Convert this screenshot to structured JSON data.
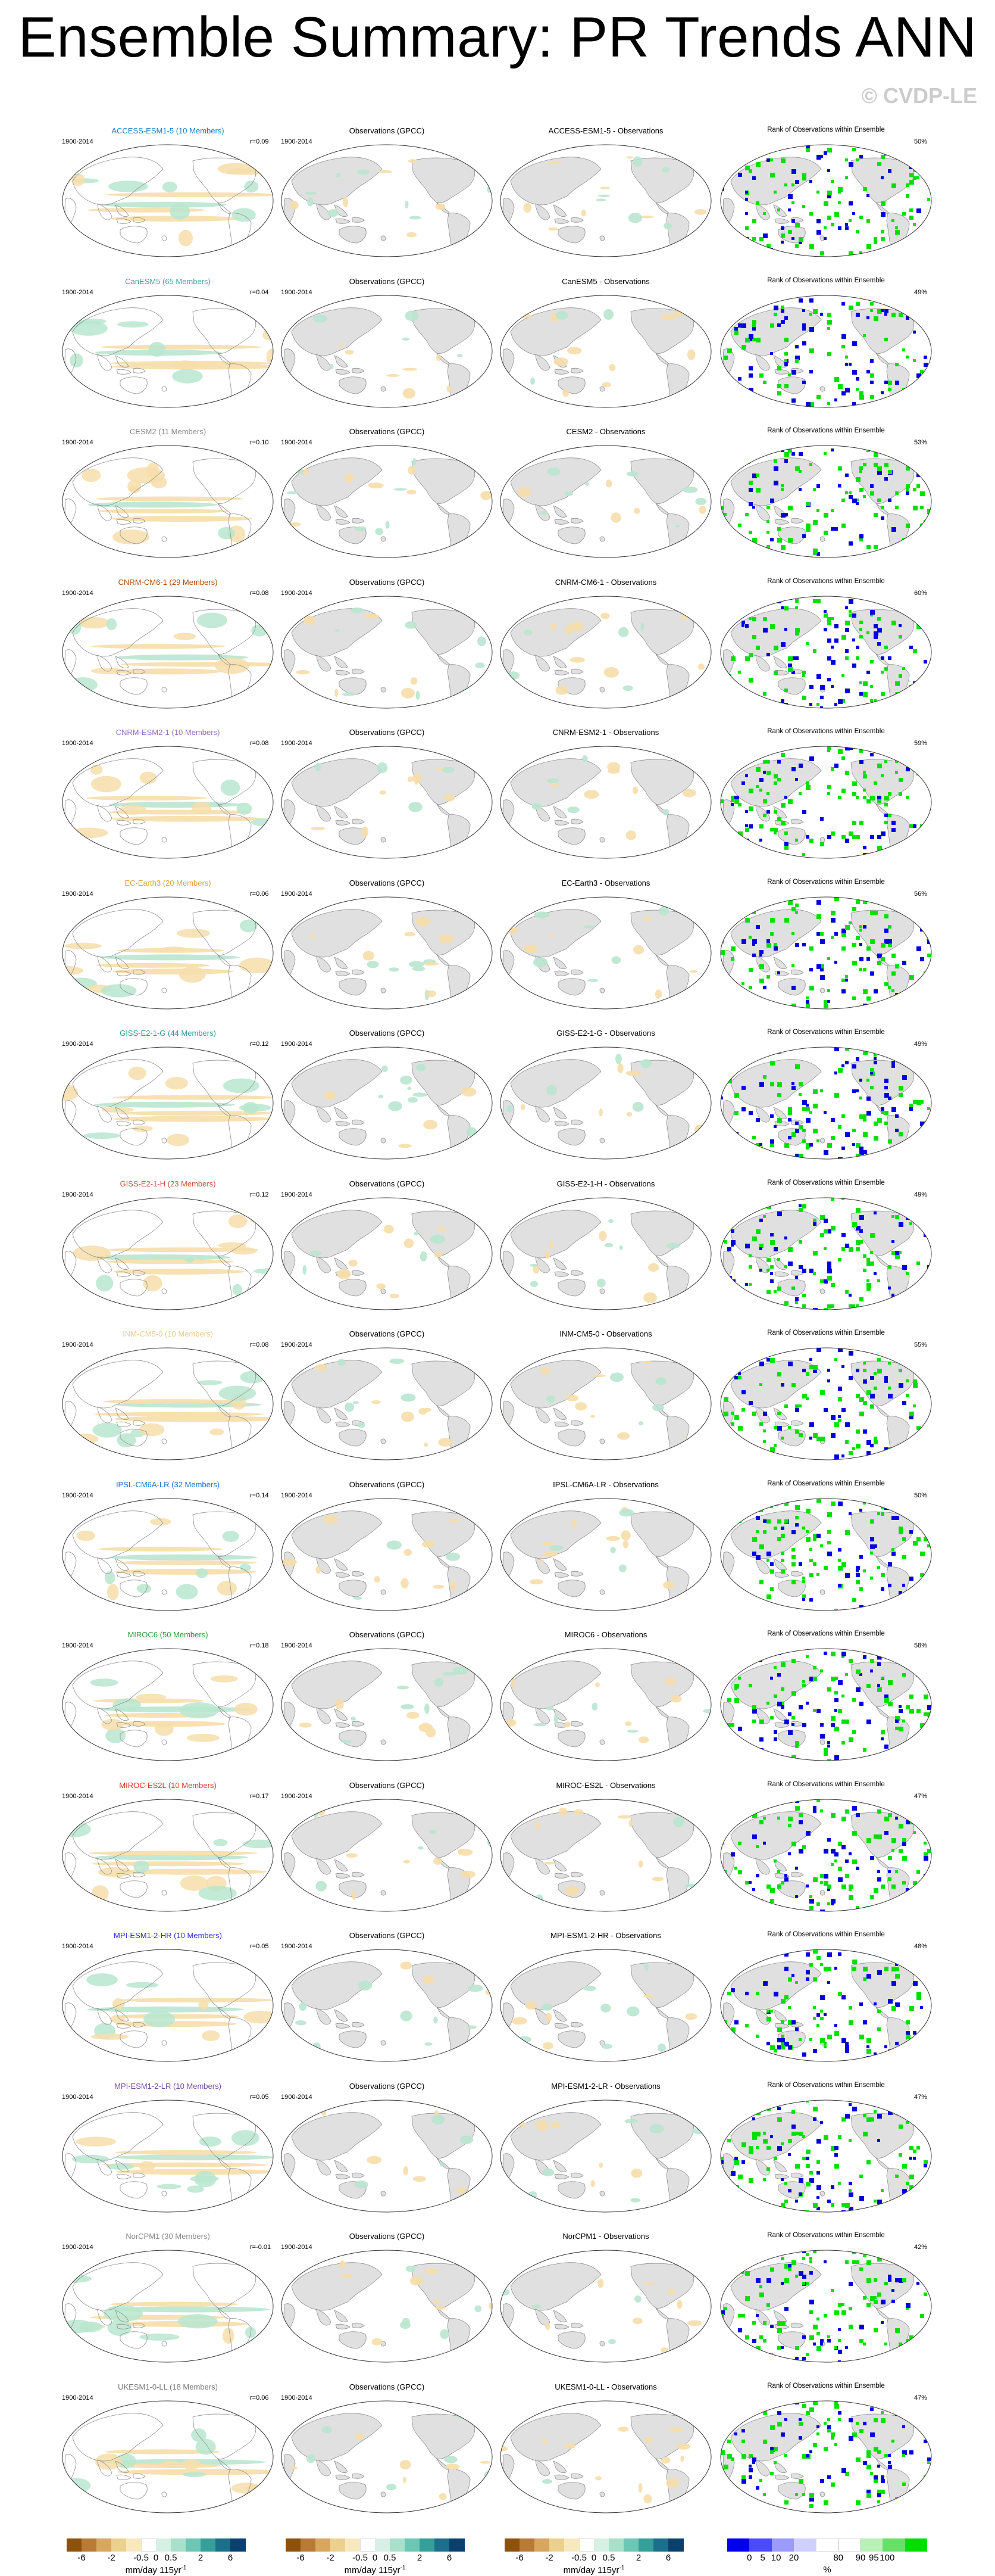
{
  "title": "Ensemble Summary: PR Trends ANN",
  "credit": "© CVDP-LE",
  "period": "1900-2014",
  "obs_title": "Observations (GPCC)",
  "rank_title": "Rank of Observations within Ensemble",
  "rows": [
    {
      "model": "ACCESS-ESM1-5 (10 Members)",
      "color": "#1a7fbf",
      "r": "r=0.09",
      "diff": "ACCESS-ESM1-5 - Observations",
      "rank_pct": "50%"
    },
    {
      "model": "CanESM5 (65 Members)",
      "color": "#46a0a0",
      "r": "r=0.04",
      "diff": "CanESM5 - Observations",
      "rank_pct": "49%"
    },
    {
      "model": "CESM2 (11 Members)",
      "color": "#8a8a8a",
      "r": "r=0.10",
      "diff": "CESM2 - Observations",
      "rank_pct": "53%"
    },
    {
      "model": "CNRM-CM6-1 (29 Members)",
      "color": "#b34a00",
      "r": "r=0.08",
      "diff": "CNRM-CM6-1 - Observations",
      "rank_pct": "60%"
    },
    {
      "model": "CNRM-ESM2-1 (10 Members)",
      "color": "#9a6fc4",
      "r": "r=0.08",
      "diff": "CNRM-ESM2-1 - Observations",
      "rank_pct": "59%"
    },
    {
      "model": "EC-Earth3 (20 Members)",
      "color": "#d9a640",
      "r": "r=0.06",
      "diff": "EC-Earth3 - Observations",
      "rank_pct": "56%"
    },
    {
      "model": "GISS-E2-1-G (44 Members)",
      "color": "#2f9a9a",
      "r": "r=0.12",
      "diff": "GISS-E2-1-G - Observations",
      "rank_pct": "49%"
    },
    {
      "model": "GISS-E2-1-H (23 Members)",
      "color": "#c0563c",
      "r": "r=0.12",
      "diff": "GISS-E2-1-H - Observations",
      "rank_pct": "49%"
    },
    {
      "model": "INM-CM5-0 (10 Members)",
      "color": "#e6d08a",
      "r": "r=0.08",
      "diff": "INM-CM5-0 - Observations",
      "rank_pct": "55%"
    },
    {
      "model": "IPSL-CM6A-LR (32 Members)",
      "color": "#1f6fd0",
      "r": "r=0.14",
      "diff": "IPSL-CM6A-LR - Observations",
      "rank_pct": "50%"
    },
    {
      "model": "MIROC6 (50 Members)",
      "color": "#2e9a3a",
      "r": "r=0.18",
      "diff": "MIROC6 - Observations",
      "rank_pct": "58%"
    },
    {
      "model": "MIROC-ES2L (10 Members)",
      "color": "#d43a2a",
      "r": "r=0.17",
      "diff": "MIROC-ES2L - Observations",
      "rank_pct": "47%"
    },
    {
      "model": "MPI-ESM1-2-HR (10 Members)",
      "color": "#2f2fd0",
      "r": "r=0.05",
      "diff": "MPI-ESM1-2-HR - Observations",
      "rank_pct": "48%"
    },
    {
      "model": "MPI-ESM1-2-LR (10 Members)",
      "color": "#7a4aa8",
      "r": "r=0.05",
      "diff": "MPI-ESM1-2-LR - Observations",
      "rank_pct": "47%"
    },
    {
      "model": "NorCPM1 (30 Members)",
      "color": "#8a8a8a",
      "r": "r=-0.01",
      "diff": "NorCPM1 - Observations",
      "rank_pct": "42%"
    },
    {
      "model": "UKESM1-0-LL (18 Members)",
      "color": "#7a7a7a",
      "r": "r=0.06",
      "diff": "UKESM1-0-LL - Observations",
      "rank_pct": "47%"
    }
  ],
  "colorbars": {
    "trend": {
      "ticks": [
        "-6",
        "-2",
        "-0.5",
        "0",
        "0.5",
        "2",
        "6"
      ],
      "colors": [
        "#8c510a",
        "#b87a34",
        "#d8a65e",
        "#ecd08e",
        "#f7e8bf",
        "#ffffff",
        "#d6f0e6",
        "#a8e0cc",
        "#6cc6b4",
        "#35a09a",
        "#1a6f8a",
        "#0b3f6e"
      ],
      "units_1": "mm/day 115yr",
      "units_sup": "-1"
    },
    "rank": {
      "ticks": [
        "0",
        "5",
        "10",
        "20",
        "80",
        "90",
        "95",
        "100"
      ],
      "colors": [
        "#0000ee",
        "#4a4aff",
        "#9a9aff",
        "#d0d0ff",
        "#ffffff",
        "#ffffff",
        "#b8f0b8",
        "#66e066",
        "#00dd00"
      ],
      "units": "%"
    }
  },
  "colors": {
    "land": "#e0e0e0",
    "ocean": "#ffffff",
    "coast": "#8f8f8f",
    "trend_dry": "#f6deaa",
    "trend_wet": "#b9e6cf",
    "rank_green": "#00e000",
    "rank_blue": "#0000dd"
  }
}
